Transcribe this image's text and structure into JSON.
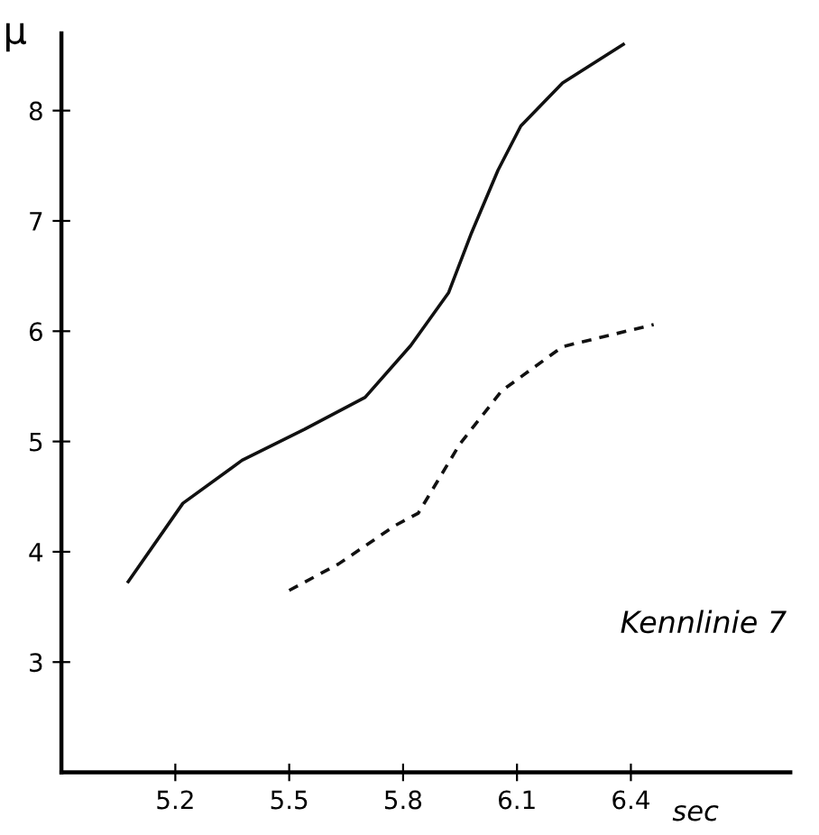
{
  "chart_data": {
    "type": "line",
    "ylabel": "μ",
    "xlabel": "sec",
    "annotations": [
      "Kennlinie 7"
    ],
    "xlim": [
      4.9,
      6.82
    ],
    "xticks": [
      5.2,
      5.5,
      5.8,
      6.1,
      6.4
    ],
    "ylim": [
      2.0,
      8.7
    ],
    "yticks": [
      3,
      4,
      5,
      6,
      7,
      8
    ],
    "grid": false,
    "legend": false,
    "marker": "none",
    "series": [
      {
        "color": "#111111",
        "line_style": "solid",
        "x": [
          5.076,
          5.22,
          5.376,
          5.54,
          5.7,
          5.82,
          5.92,
          5.98,
          6.05,
          6.11,
          6.22,
          6.38
        ],
        "values": [
          3.73,
          4.44,
          4.83,
          5.11,
          5.4,
          5.87,
          6.35,
          6.89,
          7.46,
          7.86,
          8.25,
          8.6
        ]
      },
      {
        "color": "#111111",
        "line_style": "dashed",
        "x": [
          5.5,
          5.63,
          5.78,
          5.84,
          5.95,
          6.06,
          6.22,
          6.46
        ],
        "values": [
          3.65,
          3.89,
          4.24,
          4.35,
          4.98,
          5.46,
          5.86,
          6.06
        ]
      }
    ]
  }
}
